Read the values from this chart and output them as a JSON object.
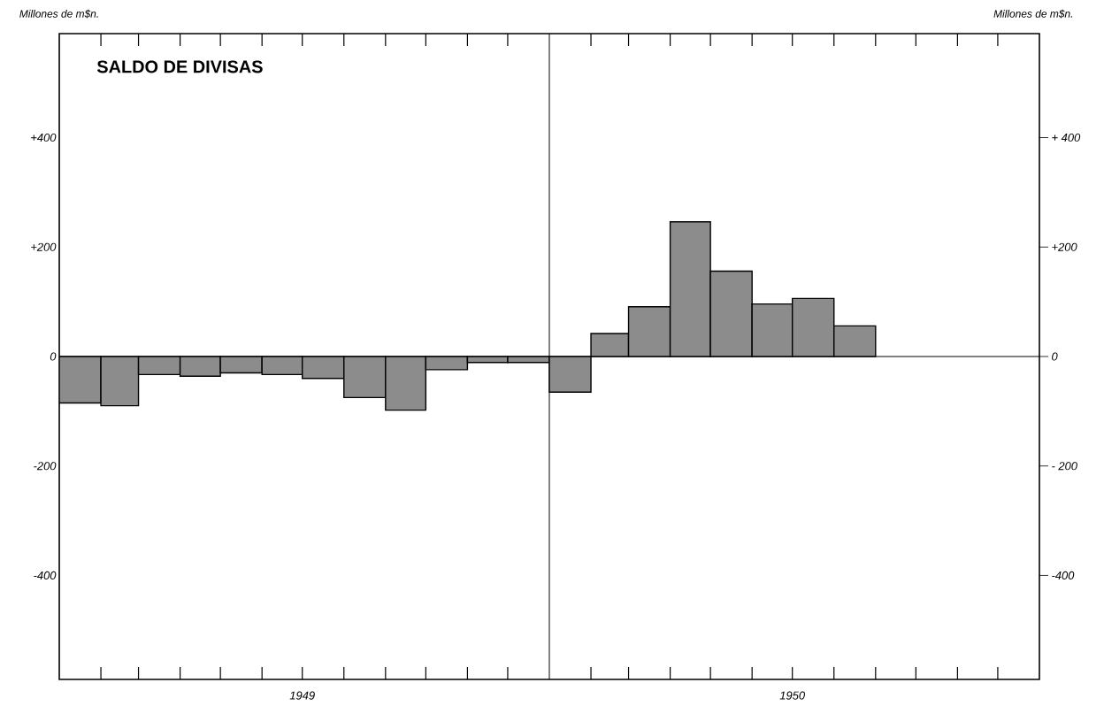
{
  "chart_data": {
    "type": "bar",
    "title": "SALDO DE DIVISAS",
    "ylabel": "Millones de m$n.",
    "y2label": "Millones de m$n.",
    "x": [
      "1949-01-16",
      "1949-02-15",
      "1949-03-16",
      "1949-04-16",
      "1949-05-16",
      "1949-06-16",
      "1949-07-16",
      "1949-08-16",
      "1949-09-16",
      "1949-10-16",
      "1949-11-16",
      "1949-12-16",
      "1950-01-16",
      "1950-02-15",
      "1950-03-16",
      "1950-04-16",
      "1950-05-16",
      "1950-06-16",
      "1950-07-16",
      "1950-08-16"
    ],
    "values": [
      -85,
      -90,
      -33,
      -36,
      -30,
      -33,
      -40,
      -75,
      -98,
      -24,
      -11,
      -11,
      -65,
      42,
      91,
      246,
      156,
      96,
      106,
      56
    ],
    "color": "#000000",
    "xlim": [
      "1949-01",
      "1951-01"
    ],
    "xticks": [
      {
        "value": "1949-02",
        "label": null
      },
      {
        "value": "1949-03",
        "label": null
      },
      {
        "value": "1949-04",
        "label": null
      },
      {
        "value": "1949-05",
        "label": null
      },
      {
        "value": "1949-06",
        "label": null
      },
      {
        "value": "1949-07",
        "label": "1949"
      },
      {
        "value": "1949-08",
        "label": null
      },
      {
        "value": "1949-09",
        "label": null
      },
      {
        "value": "1949-10",
        "label": null
      },
      {
        "value": "1949-11",
        "label": null
      },
      {
        "value": "1949-12",
        "label": null
      },
      {
        "value": "1950-02",
        "label": null
      },
      {
        "value": "1950-03",
        "label": null
      },
      {
        "value": "1950-04",
        "label": null
      },
      {
        "value": "1950-05",
        "label": null
      },
      {
        "value": "1950-06",
        "label": null
      },
      {
        "value": "1950-07",
        "label": "1950"
      },
      {
        "value": "1950-08",
        "label": null
      },
      {
        "value": "1950-09",
        "label": null
      },
      {
        "value": "1950-10",
        "label": null
      },
      {
        "value": "1950-11",
        "label": null
      },
      {
        "value": "1950-12",
        "label": null
      }
    ],
    "ylim": [
      -590,
      590
    ],
    "yticks": [
      {
        "value": -400,
        "label": "-400"
      },
      {
        "value": -200,
        "label": "-200"
      },
      0,
      {
        "value": 200,
        "label": "+200"
      },
      {
        "value": 400,
        "label": "+400"
      }
    ],
    "y2lim": [
      -590,
      590
    ],
    "y2ticks": [
      {
        "value": -400,
        "label": "-400"
      },
      {
        "value": -200,
        "label": "- 200"
      },
      0,
      {
        "value": 200,
        "label": "+200"
      },
      {
        "value": 400,
        "label": "+ 400"
      }
    ],
    "ref_lines": [
      {
        "axis": "x",
        "value": "1950-01"
      },
      {
        "axis": "y",
        "value": 0
      }
    ],
    "grid": false
  }
}
